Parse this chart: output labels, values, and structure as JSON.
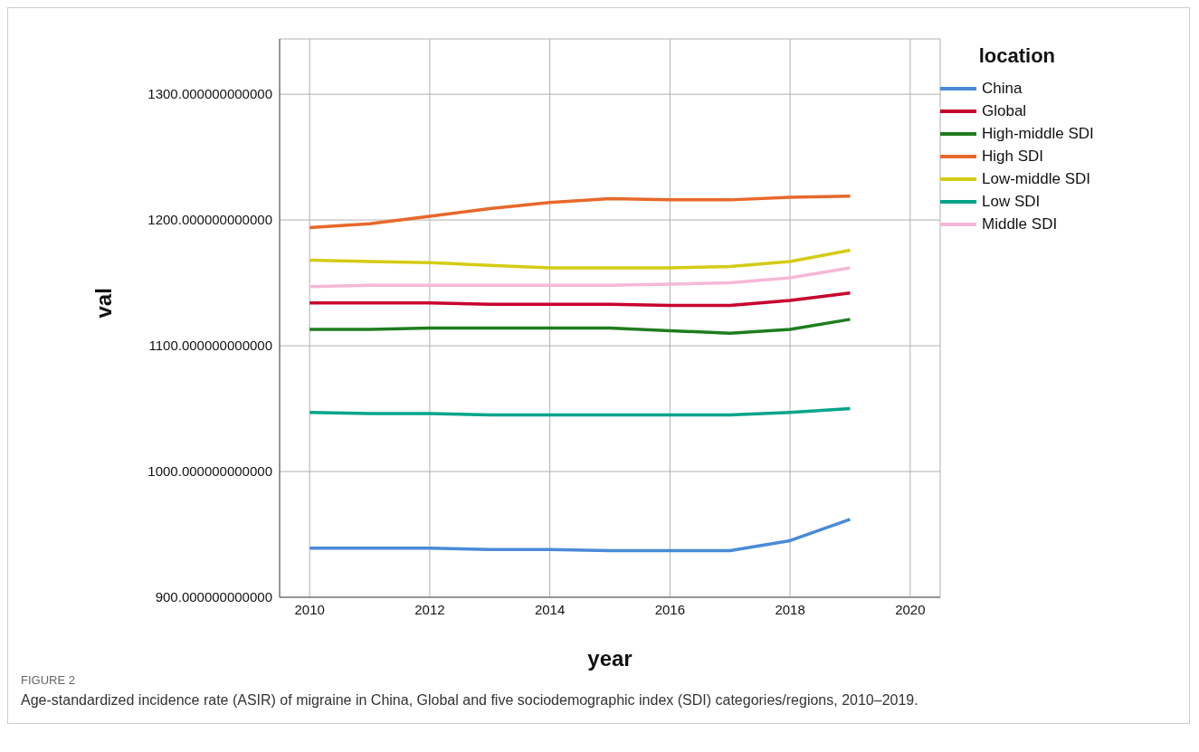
{
  "chart_data": {
    "type": "line",
    "xlabel": "year",
    "ylabel": "val",
    "legend_title": "location",
    "legend": "top right",
    "grid": true,
    "marker": "none",
    "line_style": "solid",
    "x": [
      2010,
      2011,
      2012,
      2013,
      2014,
      2015,
      2016,
      2017,
      2018,
      2019
    ],
    "xlim": [
      2009.5,
      2020.5
    ],
    "xticks": [
      2010,
      2012,
      2014,
      2016,
      2018,
      2020
    ],
    "ylim": [
      900,
      1344
    ],
    "yticks": [
      {
        "value": 900,
        "label": "900.000000000000"
      },
      {
        "value": 1000,
        "label": "1000.000000000000"
      },
      {
        "value": 1100,
        "label": "1100.000000000000"
      },
      {
        "value": 1200,
        "label": "1200.000000000000"
      },
      {
        "value": 1300,
        "label": "1300.000000000000"
      }
    ],
    "series": [
      {
        "name": "China",
        "color": "#4a8ad8",
        "values": [
          939,
          939,
          939,
          938,
          938,
          937,
          937,
          937,
          945,
          962
        ]
      },
      {
        "name": "Global",
        "color": "#c8002e",
        "values": [
          1134,
          1134,
          1134,
          1133,
          1133,
          1133,
          1132,
          1132,
          1136,
          1142
        ]
      },
      {
        "name": "High-middle SDI",
        "color": "#1e7d1e",
        "values": [
          1113,
          1113,
          1114,
          1114,
          1114,
          1114,
          1112,
          1110,
          1113,
          1121
        ]
      },
      {
        "name": "High SDI",
        "color": "#e8682a",
        "values": [
          1194,
          1197,
          1203,
          1209,
          1214,
          1217,
          1216,
          1216,
          1218,
          1219
        ]
      },
      {
        "name": "Low-middle SDI",
        "color": "#d4cc14",
        "values": [
          1168,
          1167,
          1166,
          1164,
          1162,
          1162,
          1162,
          1163,
          1167,
          1176
        ]
      },
      {
        "name": "Low SDI",
        "color": "#00a58a",
        "values": [
          1047,
          1046,
          1046,
          1045,
          1045,
          1045,
          1045,
          1045,
          1047,
          1050
        ]
      },
      {
        "name": "Middle SDI",
        "color": "#f5b8d8",
        "values": [
          1147,
          1148,
          1148,
          1148,
          1148,
          1148,
          1149,
          1150,
          1154,
          1162
        ]
      }
    ],
    "annotations": [
      "FIGURE 2",
      "Age-standardized incidence rate (ASIR) of migraine in China, Global and five sociodemographic index (SDI) categories/regions, 2010–2019."
    ]
  }
}
